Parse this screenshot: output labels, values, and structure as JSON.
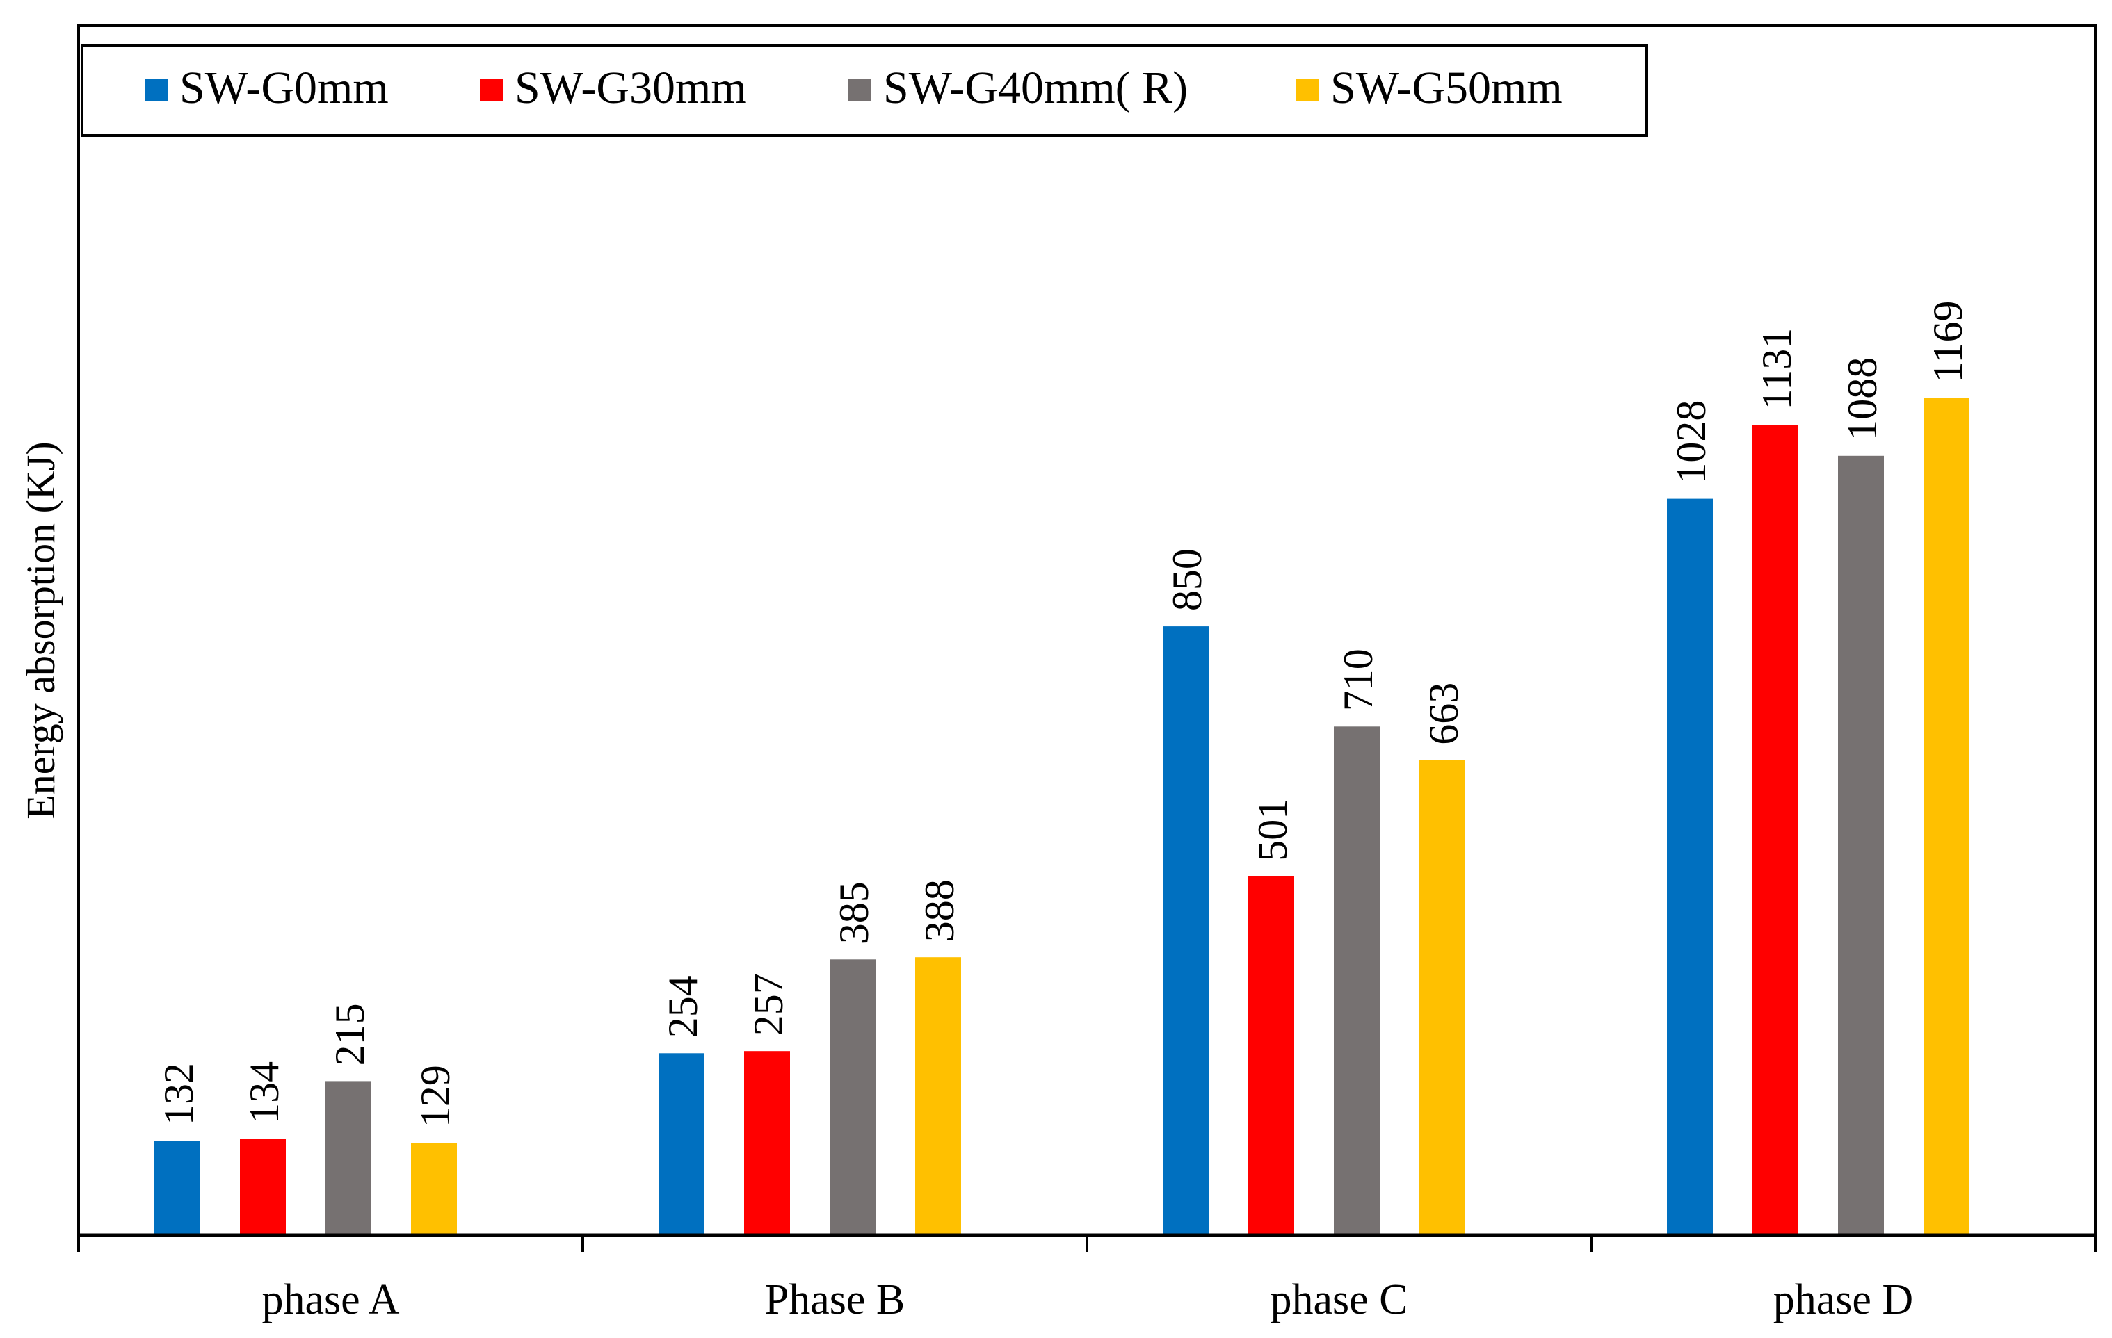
{
  "chart_data": {
    "type": "bar",
    "title": "",
    "xlabel": "",
    "ylabel": "Energy absorption  (KJ)",
    "categories": [
      "phase A",
      "Phase B",
      "phase C",
      "phase D"
    ],
    "series": [
      {
        "name": "SW-G0mm",
        "color": "#0070C0",
        "values": [
          132,
          254,
          850,
          1028
        ]
      },
      {
        "name": "SW-G30mm",
        "color": "#FF0000",
        "values": [
          134,
          257,
          501,
          1131
        ]
      },
      {
        "name": "SW-G40mm( R)",
        "color": "#767171",
        "values": [
          215,
          385,
          710,
          1088
        ]
      },
      {
        "name": "SW-G50mm",
        "color": "#FFC000",
        "values": [
          129,
          388,
          663,
          1169
        ]
      }
    ],
    "ylim": [
      0,
      1360
    ],
    "grid": false,
    "y_ticks_shown": false,
    "legend_position": "top-left"
  }
}
